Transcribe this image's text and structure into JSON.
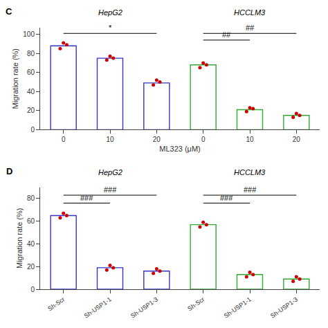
{
  "chart_data": [
    {
      "type": "bar",
      "title": "C",
      "xlabel": "ML323 (μM)",
      "ylabel": "Migration rate (%)",
      "categories": [
        "0",
        "10",
        "20",
        "0",
        "10",
        "20"
      ],
      "values": [
        88,
        75,
        49,
        68,
        21,
        15
      ],
      "colors": [
        "#3333cc",
        "#3333cc",
        "#3333cc",
        "#33aa33",
        "#33aa33",
        "#33aa33"
      ],
      "points": {
        "type": "scatter",
        "color": "#cc0000",
        "values": [
          [
            85,
            91,
            89
          ],
          [
            73,
            77,
            75
          ],
          [
            47,
            52,
            50
          ],
          [
            65,
            70,
            68
          ],
          [
            19,
            23,
            22
          ],
          [
            13,
            17,
            15
          ]
        ]
      },
      "group_labels": [
        {
          "text": "HepG2",
          "categories": [
            0,
            1,
            2
          ]
        },
        {
          "text": "HCCLM3",
          "categories": [
            3,
            4,
            5
          ]
        }
      ],
      "significance": [
        {
          "text": "*",
          "x": [
            0,
            2
          ],
          "y": 101
        },
        {
          "text": "##",
          "x": [
            3,
            5
          ],
          "y": 101
        },
        {
          "text": "##",
          "x": [
            3,
            4
          ],
          "y": 94
        }
      ],
      "ylim": [
        0,
        107
      ],
      "yticks": [
        0,
        20,
        40,
        60,
        80,
        100
      ],
      "grid": false
    },
    {
      "type": "bar",
      "title": "D",
      "ylabel": "Migration rate (%)",
      "categories": [
        "Sh-Scr",
        "Sh-USP1-1",
        "Sh-USP1-3",
        "Sh-Scr",
        "Sh-USP1-1",
        "Sh-USP1-3"
      ],
      "values": [
        65,
        19,
        16,
        57,
        13,
        9
      ],
      "colors": [
        "#3333cc",
        "#3333cc",
        "#3333cc",
        "#33aa33",
        "#33aa33",
        "#33aa33"
      ],
      "points": {
        "type": "scatter",
        "color": "#cc0000",
        "values": [
          [
            63,
            67,
            65
          ],
          [
            17,
            21,
            19
          ],
          [
            14,
            18,
            16
          ],
          [
            55,
            59,
            57
          ],
          [
            11,
            15,
            13
          ],
          [
            7,
            11,
            9
          ]
        ]
      },
      "group_labels": [
        {
          "text": "HepG2",
          "categories": [
            0,
            1,
            2
          ]
        },
        {
          "text": "HCCLM3",
          "categories": [
            3,
            4,
            5
          ]
        }
      ],
      "significance": [
        {
          "text": "###",
          "x": [
            0,
            2
          ],
          "y": 83
        },
        {
          "text": "###",
          "x": [
            0,
            1
          ],
          "y": 76
        },
        {
          "text": "###",
          "x": [
            3,
            5
          ],
          "y": 83
        },
        {
          "text": "###",
          "x": [
            3,
            4
          ],
          "y": 76
        }
      ],
      "ylim": [
        0,
        90
      ],
      "yticks": [
        0,
        20,
        40,
        60,
        80
      ],
      "grid": false
    }
  ]
}
